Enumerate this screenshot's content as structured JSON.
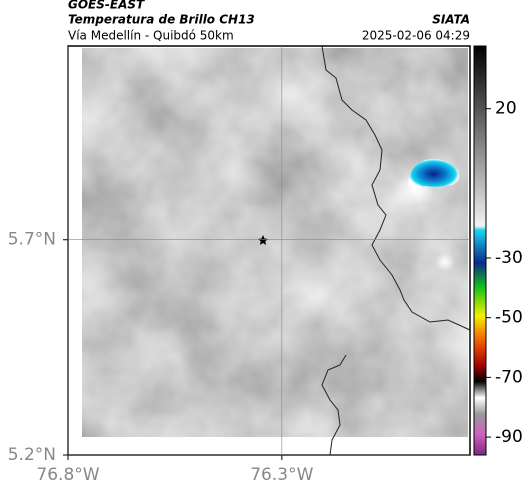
{
  "header": {
    "satellite": "GOES-EAST",
    "title": "Temperatura de Brillo CH13",
    "subtitle": "Vía Medellín - Quibdó 50km",
    "source": "SIATA",
    "timestamp": "2025-02-06 04:29"
  },
  "map": {
    "xlim": [
      -76.8,
      -75.86
    ],
    "ylim": [
      5.2,
      6.15
    ],
    "xticks": [
      {
        "value": -76.8,
        "label": "76.8°W"
      },
      {
        "value": -76.3,
        "label": "76.3°W"
      }
    ],
    "yticks": [
      {
        "value": 5.2,
        "label": "5.2°N"
      },
      {
        "value": 5.7,
        "label": "5.7°N"
      }
    ],
    "grid": true
  },
  "colorbar": {
    "clim": [
      41,
      -96
    ],
    "ticks": [
      20,
      -30,
      -50,
      -70,
      -90
    ]
  }
}
